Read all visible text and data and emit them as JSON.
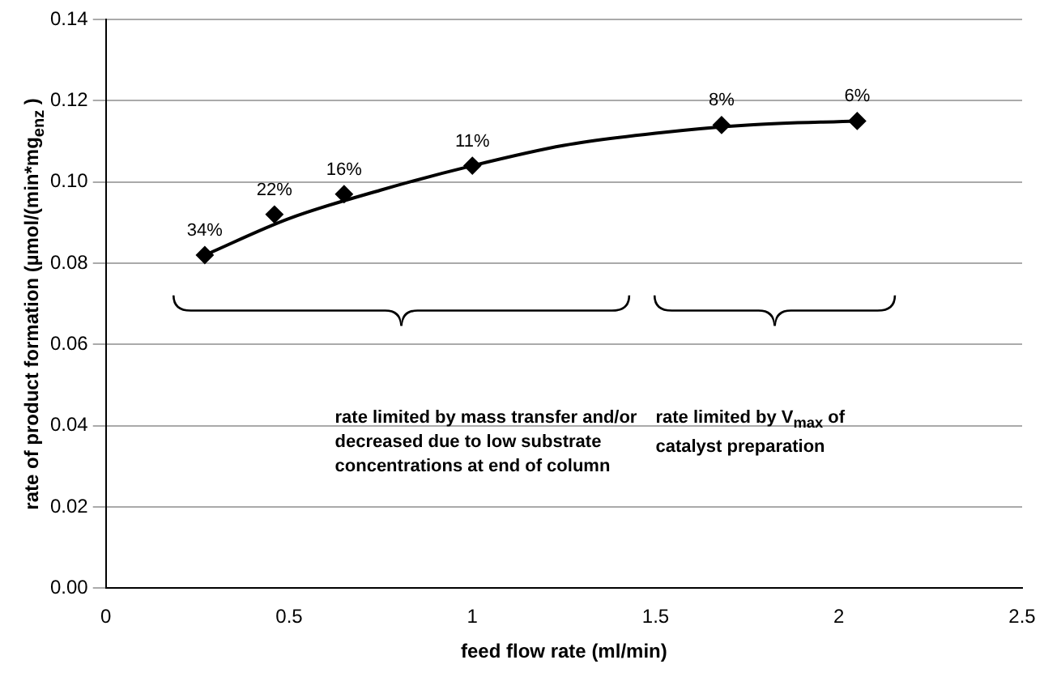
{
  "chart_data": {
    "type": "scatter",
    "xlabel": "feed flow rate (ml/min)",
    "ylabel": "rate of product formation (µmol/(min*mg$_{enz}$ )",
    "xlim": [
      0,
      2.5
    ],
    "xticks": [
      0,
      0.5,
      1,
      1.5,
      2,
      2.5
    ],
    "ylim": [
      0,
      0.14
    ],
    "yticks": [
      {
        "value": 0,
        "label": "0.00"
      },
      {
        "value": 0.02,
        "label": "0.02"
      },
      {
        "value": 0.04,
        "label": "0.04"
      },
      {
        "value": 0.06,
        "label": "0.06"
      },
      {
        "value": 0.08,
        "label": "0.08"
      },
      {
        "value": 0.1,
        "label": "0.10"
      },
      {
        "value": 0.12,
        "label": "0.12"
      },
      {
        "value": 0.14,
        "label": "0.14"
      }
    ],
    "grid": "y",
    "series": [
      {
        "type": "scatter",
        "marker": "diamond",
        "color": "#000000",
        "x": [
          0.27,
          0.46,
          0.65,
          1.0,
          1.68,
          2.05
        ],
        "values": [
          0.082,
          0.092,
          0.097,
          0.104,
          0.114,
          0.115
        ]
      },
      {
        "type": "line",
        "marker": "none",
        "color": "#000000",
        "x": [
          0.27,
          0.5,
          0.75,
          1.0,
          1.25,
          1.5,
          1.75,
          2.05
        ],
        "values": [
          0.082,
          0.091,
          0.098,
          0.104,
          0.109,
          0.112,
          0.114,
          0.115
        ]
      }
    ],
    "annotations": [
      {
        "text": "34%",
        "x": 0.27,
        "y": 0.082
      },
      {
        "text": "22%",
        "x": 0.46,
        "y": 0.092
      },
      {
        "text": "16%",
        "x": 0.65,
        "y": 0.097
      },
      {
        "text": "11%",
        "x": 1.0,
        "y": 0.104
      },
      {
        "text": "8%",
        "x": 1.68,
        "y": 0.114
      },
      {
        "text": "6%",
        "x": 2.05,
        "y": 0.115
      },
      "rate limited by mass transfer and/or decreased due to low substrate concentrations at end of column",
      "rate limited by V$_{max}$ of catalyst preparation"
    ]
  }
}
